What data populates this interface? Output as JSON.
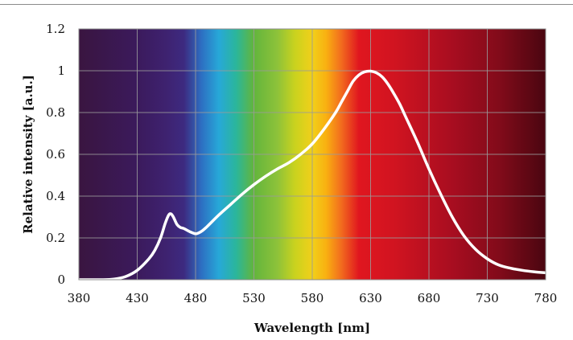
{
  "chart_data": {
    "type": "line",
    "title": "",
    "xlabel": "Wavelength [nm]",
    "ylabel": "Relative intensity [a.u.]",
    "xlim": [
      380,
      780
    ],
    "ylim": [
      0,
      1.2
    ],
    "xticks": [
      380,
      430,
      480,
      530,
      580,
      630,
      680,
      730,
      780
    ],
    "yticks": [
      0,
      0.2,
      0.4,
      0.6,
      0.8,
      1,
      1.2
    ],
    "xtick_labels": [
      "380",
      "430",
      "480",
      "530",
      "580",
      "630",
      "680",
      "730",
      "780"
    ],
    "ytick_labels": [
      "0",
      "0.2",
      "0.4",
      "0.6",
      "0.8",
      "1",
      "1.2"
    ],
    "grid": true,
    "legend": "none",
    "line_color": "#ffffff",
    "background": "visible-spectrum gradient",
    "spectrum_stops": [
      {
        "nm": 380,
        "color": "#3a1540"
      },
      {
        "nm": 430,
        "color": "#3b1a5c"
      },
      {
        "nm": 455,
        "color": "#3e2270"
      },
      {
        "nm": 470,
        "color": "#3d2a80"
      },
      {
        "nm": 485,
        "color": "#2d6fc2"
      },
      {
        "nm": 500,
        "color": "#27a8d8"
      },
      {
        "nm": 515,
        "color": "#2bb69a"
      },
      {
        "nm": 530,
        "color": "#63b53c"
      },
      {
        "nm": 550,
        "color": "#8dc23a"
      },
      {
        "nm": 565,
        "color": "#c9d21e"
      },
      {
        "nm": 580,
        "color": "#f1d01a"
      },
      {
        "nm": 592,
        "color": "#f9b011"
      },
      {
        "nm": 605,
        "color": "#f26b1e"
      },
      {
        "nm": 620,
        "color": "#e0161f"
      },
      {
        "nm": 650,
        "color": "#d11420"
      },
      {
        "nm": 700,
        "color": "#a80d20"
      },
      {
        "nm": 740,
        "color": "#820b1a"
      },
      {
        "nm": 780,
        "color": "#4a0610"
      }
    ],
    "series": [
      {
        "x": [
          380,
          400,
          410,
          420,
          430,
          440,
          445,
          450,
          454,
          457,
          459,
          461,
          464,
          467,
          470,
          475,
          480,
          483,
          486,
          490,
          500,
          510,
          520,
          530,
          540,
          550,
          560,
          570,
          580,
          590,
          600,
          605,
          610,
          615,
          620,
          625,
          630,
          635,
          640,
          645,
          650,
          655,
          660,
          670,
          680,
          690,
          700,
          710,
          720,
          730,
          740,
          750,
          760,
          770,
          780
        ],
        "y": [
          0.0,
          0.0,
          0.003,
          0.015,
          0.045,
          0.1,
          0.14,
          0.2,
          0.27,
          0.31,
          0.315,
          0.3,
          0.265,
          0.25,
          0.245,
          0.23,
          0.22,
          0.225,
          0.235,
          0.255,
          0.31,
          0.36,
          0.41,
          0.455,
          0.495,
          0.53,
          0.56,
          0.6,
          0.65,
          0.72,
          0.8,
          0.85,
          0.9,
          0.95,
          0.98,
          0.995,
          0.998,
          0.99,
          0.97,
          0.935,
          0.89,
          0.84,
          0.78,
          0.66,
          0.53,
          0.41,
          0.3,
          0.21,
          0.145,
          0.1,
          0.07,
          0.055,
          0.045,
          0.038,
          0.033
        ]
      }
    ]
  }
}
